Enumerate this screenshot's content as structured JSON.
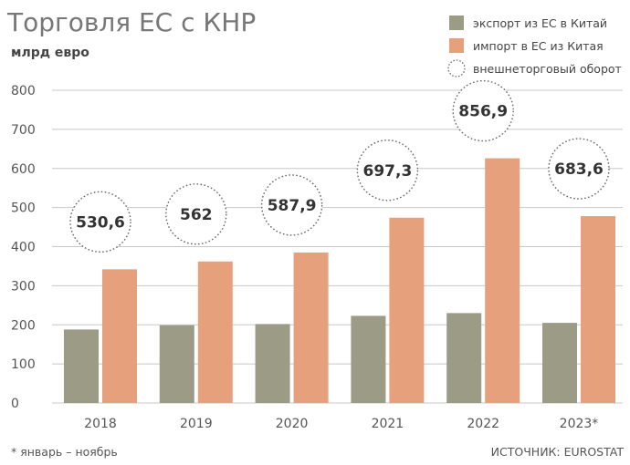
{
  "title": "Торговля ЕС с КНР",
  "subtitle": "млрд евро",
  "footnote": "* январь – ноябрь",
  "source": "ИСТОЧНИК: EUROSTAT",
  "colors": {
    "export": "#9c9b86",
    "import": "#e6a07c",
    "grid": "#c8c8c8",
    "circle": "#666666"
  },
  "chart_data": {
    "type": "bar",
    "categories": [
      "2018",
      "2019",
      "2020",
      "2021",
      "2022",
      "2023*"
    ],
    "series": [
      {
        "name": "экспорт из ЕС в Китай",
        "values": [
          188,
          199,
          202,
          223,
          230,
          205
        ]
      },
      {
        "name": "импорт в ЕС из Китая",
        "values": [
          342,
          362,
          385,
          474,
          626,
          478
        ]
      }
    ],
    "totals": {
      "name": "внешнеторговый оборот",
      "values": [
        530.6,
        562,
        587.9,
        697.3,
        856.9,
        683.6
      ],
      "labels": [
        "530,6",
        "562",
        "587,9",
        "697,3",
        "856,9",
        "683,6"
      ]
    },
    "yticks": [
      0,
      100,
      200,
      300,
      400,
      500,
      600,
      700,
      800
    ],
    "ylim": [
      0,
      800
    ],
    "grid": true,
    "legend_position": "top-right"
  }
}
